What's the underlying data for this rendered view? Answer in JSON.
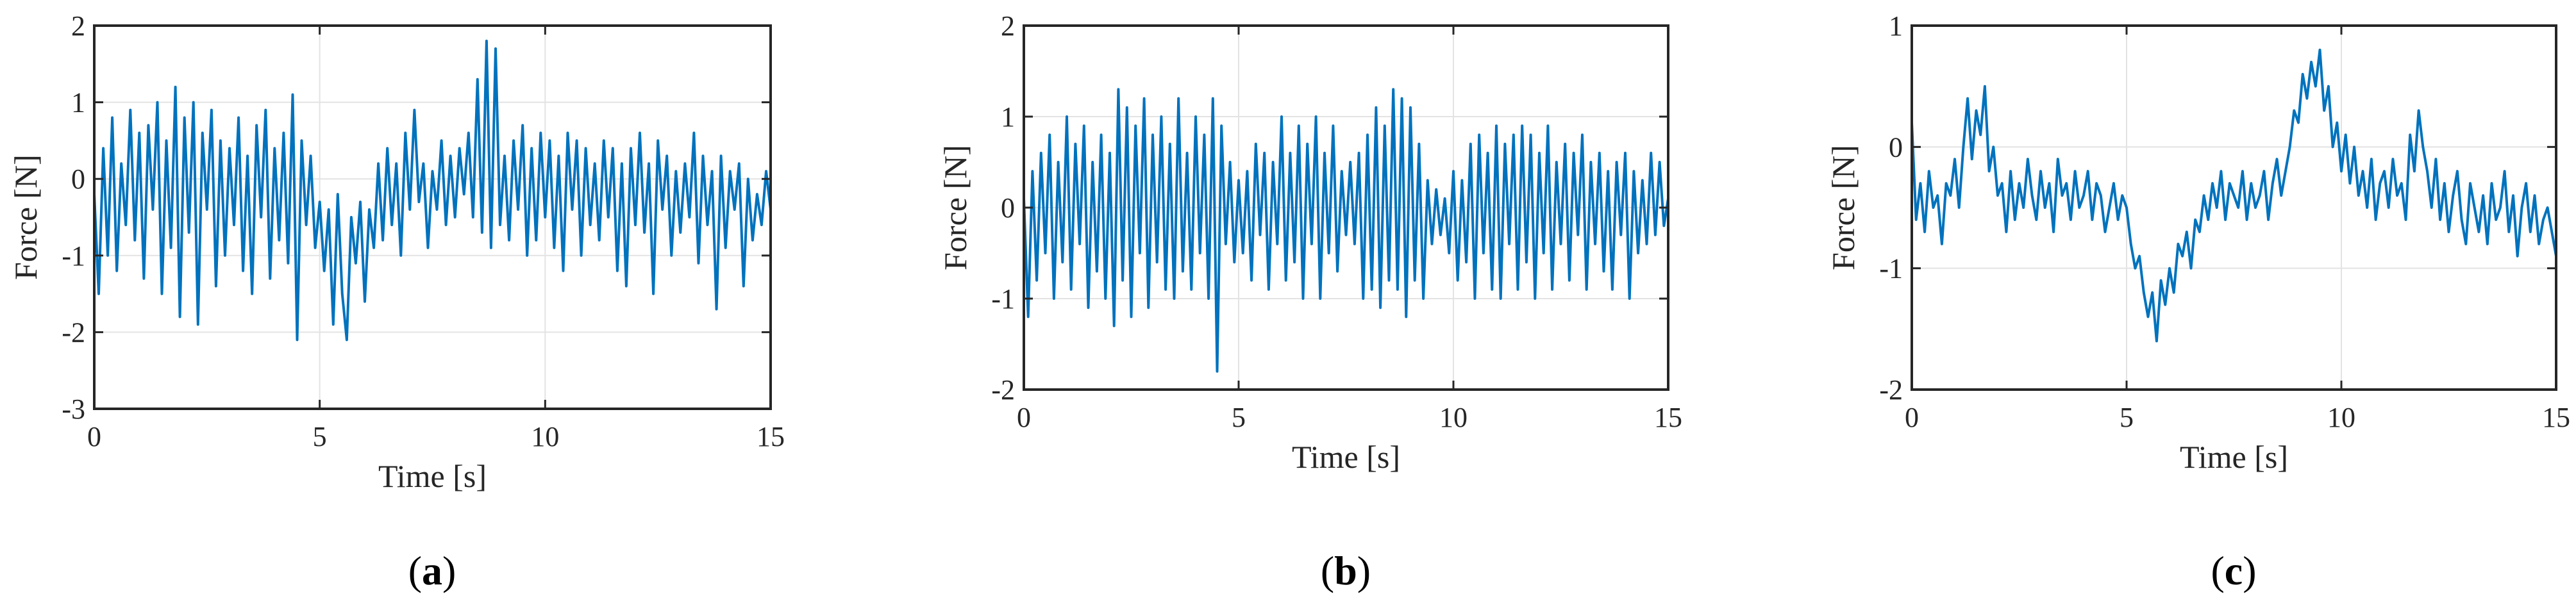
{
  "chart_data": [
    {
      "type": "line",
      "panel_label": "a",
      "xlabel": "Time [s]",
      "ylabel": "Force [N]",
      "xlim": [
        0,
        15
      ],
      "ylim": [
        -3,
        2
      ],
      "xticks": [
        0,
        5,
        10,
        15
      ],
      "yticks": [
        -3,
        -2,
        -1,
        0,
        1,
        2
      ],
      "grid": true,
      "color": "#0072BD",
      "series": [
        {
          "x": [
            0,
            0.1,
            0.2,
            0.3,
            0.4,
            0.5,
            0.6,
            0.7,
            0.8,
            0.9,
            1.0,
            1.1,
            1.2,
            1.3,
            1.4,
            1.5,
            1.6,
            1.7,
            1.8,
            1.9,
            2.0,
            2.1,
            2.2,
            2.3,
            2.4,
            2.5,
            2.6,
            2.7,
            2.8,
            2.9,
            3.0,
            3.1,
            3.2,
            3.3,
            3.4,
            3.5,
            3.6,
            3.7,
            3.8,
            3.9,
            4.0,
            4.1,
            4.2,
            4.3,
            4.4,
            4.5,
            4.6,
            4.7,
            4.8,
            4.9,
            5.0,
            5.1,
            5.2,
            5.3,
            5.4,
            5.5,
            5.6,
            5.7,
            5.8,
            5.9,
            6.0,
            6.1,
            6.2,
            6.3,
            6.4,
            6.5,
            6.6,
            6.7,
            6.8,
            6.9,
            7.0,
            7.1,
            7.2,
            7.3,
            7.4,
            7.5,
            7.6,
            7.7,
            7.8,
            7.9,
            8.0,
            8.1,
            8.2,
            8.3,
            8.4,
            8.5,
            8.6,
            8.7,
            8.8,
            8.9,
            9.0,
            9.1,
            9.2,
            9.3,
            9.4,
            9.5,
            9.6,
            9.7,
            9.8,
            9.9,
            10.0,
            10.1,
            10.2,
            10.3,
            10.4,
            10.5,
            10.6,
            10.7,
            10.8,
            10.9,
            11.0,
            11.1,
            11.2,
            11.3,
            11.4,
            11.5,
            11.6,
            11.7,
            11.8,
            11.9,
            12.0,
            12.1,
            12.2,
            12.3,
            12.4,
            12.5,
            12.6,
            12.7,
            12.8,
            12.9,
            13.0,
            13.1,
            13.2,
            13.3,
            13.4,
            13.5,
            13.6,
            13.7,
            13.8,
            13.9,
            14.0,
            14.1,
            14.2,
            14.3,
            14.4,
            14.5,
            14.6,
            14.7,
            14.8,
            14.9,
            15.0
          ],
          "y": [
            -0.2,
            -1.5,
            0.4,
            -1.0,
            0.8,
            -1.2,
            0.2,
            -0.6,
            0.9,
            -0.8,
            0.6,
            -1.3,
            0.7,
            -0.4,
            1.0,
            -1.5,
            0.5,
            -0.9,
            1.2,
            -1.8,
            0.8,
            -0.7,
            1.0,
            -1.9,
            0.6,
            -0.4,
            0.9,
            -1.4,
            0.5,
            -1.0,
            0.4,
            -0.6,
            0.8,
            -1.2,
            0.3,
            -1.5,
            0.7,
            -0.5,
            0.9,
            -1.3,
            0.4,
            -0.8,
            0.6,
            -1.1,
            1.1,
            -2.1,
            0.5,
            -0.6,
            0.3,
            -0.9,
            -0.3,
            -1.2,
            -0.4,
            -1.9,
            -0.2,
            -1.5,
            -2.1,
            -0.5,
            -1.1,
            -0.3,
            -1.6,
            -0.4,
            -0.9,
            0.2,
            -0.8,
            0.4,
            -0.6,
            0.2,
            -1.0,
            0.6,
            -0.4,
            0.9,
            -0.3,
            0.2,
            -0.9,
            0.1,
            -0.4,
            0.5,
            -0.6,
            0.3,
            -0.5,
            0.4,
            -0.2,
            0.6,
            -0.5,
            1.3,
            -0.7,
            1.8,
            -0.9,
            1.7,
            -0.6,
            0.3,
            -0.8,
            0.5,
            -0.4,
            0.7,
            -1.0,
            0.4,
            -0.8,
            0.6,
            -0.5,
            0.5,
            -0.9,
            0.3,
            -1.2,
            0.6,
            -0.4,
            0.5,
            -1.0,
            0.4,
            -0.6,
            0.2,
            -0.8,
            0.5,
            -0.5,
            0.4,
            -1.2,
            0.2,
            -1.4,
            0.4,
            -0.6,
            0.6,
            -0.7,
            0.2,
            -1.5,
            0.5,
            -0.4,
            0.3,
            -1.0,
            0.1,
            -0.7,
            0.2,
            -0.5,
            0.6,
            -1.1,
            0.3,
            -0.6,
            0.1,
            -1.7,
            0.3,
            -0.9,
            0.1,
            -0.4,
            0.2,
            -1.4,
            0.0,
            -0.8,
            -0.2,
            -0.6,
            0.1,
            -0.4
          ]
        }
      ]
    },
    {
      "type": "line",
      "panel_label": "b",
      "xlabel": "Time [s]",
      "ylabel": "Force [N]",
      "xlim": [
        0,
        15
      ],
      "ylim": [
        -2,
        2
      ],
      "xticks": [
        0,
        5,
        10,
        15
      ],
      "yticks": [
        -2,
        -1,
        0,
        1,
        2
      ],
      "grid": true,
      "color": "#0072BD",
      "series": [
        {
          "x": [
            0,
            0.1,
            0.2,
            0.3,
            0.4,
            0.5,
            0.6,
            0.7,
            0.8,
            0.9,
            1.0,
            1.1,
            1.2,
            1.3,
            1.4,
            1.5,
            1.6,
            1.7,
            1.8,
            1.9,
            2.0,
            2.1,
            2.2,
            2.3,
            2.4,
            2.5,
            2.6,
            2.7,
            2.8,
            2.9,
            3.0,
            3.1,
            3.2,
            3.3,
            3.4,
            3.5,
            3.6,
            3.7,
            3.8,
            3.9,
            4.0,
            4.1,
            4.2,
            4.3,
            4.4,
            4.5,
            4.6,
            4.7,
            4.8,
            4.9,
            5.0,
            5.1,
            5.2,
            5.3,
            5.4,
            5.5,
            5.6,
            5.7,
            5.8,
            5.9,
            6.0,
            6.1,
            6.2,
            6.3,
            6.4,
            6.5,
            6.6,
            6.7,
            6.8,
            6.9,
            7.0,
            7.1,
            7.2,
            7.3,
            7.4,
            7.5,
            7.6,
            7.7,
            7.8,
            7.9,
            8.0,
            8.1,
            8.2,
            8.3,
            8.4,
            8.5,
            8.6,
            8.7,
            8.8,
            8.9,
            9.0,
            9.1,
            9.2,
            9.3,
            9.4,
            9.5,
            9.6,
            9.7,
            9.8,
            9.9,
            10.0,
            10.1,
            10.2,
            10.3,
            10.4,
            10.5,
            10.6,
            10.7,
            10.8,
            10.9,
            11.0,
            11.1,
            11.2,
            11.3,
            11.4,
            11.5,
            11.6,
            11.7,
            11.8,
            11.9,
            12.0,
            12.1,
            12.2,
            12.3,
            12.4,
            12.5,
            12.6,
            12.7,
            12.8,
            12.9,
            13.0,
            13.1,
            13.2,
            13.3,
            13.4,
            13.5,
            13.6,
            13.7,
            13.8,
            13.9,
            14.0,
            14.1,
            14.2,
            14.3,
            14.4,
            14.5,
            14.6,
            14.7,
            14.8,
            14.9,
            15.0
          ],
          "y": [
            0.1,
            -1.2,
            0.4,
            -0.8,
            0.6,
            -0.5,
            0.8,
            -1.0,
            0.5,
            -0.6,
            1.0,
            -0.9,
            0.7,
            -0.4,
            0.9,
            -1.1,
            0.5,
            -0.7,
            0.8,
            -1.0,
            0.6,
            -1.3,
            1.3,
            -0.8,
            1.1,
            -1.2,
            0.9,
            -0.5,
            1.2,
            -1.1,
            0.8,
            -0.6,
            1.0,
            -0.9,
            0.7,
            -1.0,
            1.2,
            -0.7,
            0.6,
            -0.9,
            1.0,
            -0.5,
            0.8,
            -1.0,
            1.2,
            -1.8,
            0.9,
            -0.4,
            0.5,
            -0.6,
            0.3,
            -0.5,
            0.4,
            -0.8,
            0.7,
            -0.3,
            0.6,
            -0.9,
            0.5,
            -0.4,
            1.0,
            -0.8,
            0.6,
            -0.6,
            0.9,
            -1.0,
            0.7,
            -0.4,
            1.0,
            -1.0,
            0.6,
            -0.5,
            0.9,
            -0.7,
            0.4,
            -0.3,
            0.5,
            -0.4,
            0.6,
            -1.0,
            0.8,
            -0.9,
            1.1,
            -1.1,
            0.9,
            -0.8,
            1.3,
            -0.9,
            1.2,
            -1.2,
            1.1,
            -0.8,
            0.7,
            -1.0,
            0.3,
            -0.4,
            0.2,
            -0.3,
            0.1,
            -0.5,
            0.4,
            -0.8,
            0.3,
            -0.6,
            0.7,
            -1.0,
            0.8,
            -0.5,
            0.6,
            -0.9,
            0.9,
            -1.0,
            0.7,
            -0.4,
            0.8,
            -0.9,
            0.9,
            -0.6,
            0.8,
            -1.0,
            0.6,
            -0.5,
            0.9,
            -0.9,
            0.5,
            -0.4,
            0.7,
            -0.8,
            0.6,
            -0.3,
            0.8,
            -0.9,
            0.5,
            -0.4,
            0.6,
            -0.7,
            0.4,
            -0.9,
            0.5,
            -0.3,
            0.6,
            -1.0,
            0.4,
            -0.5,
            0.3,
            -0.4,
            0.6,
            -0.3,
            0.5,
            -0.2,
            0.1
          ]
        }
      ]
    },
    {
      "type": "line",
      "panel_label": "c",
      "xlabel": "Time [s]",
      "ylabel": "Force [N]",
      "xlim": [
        0,
        15
      ],
      "ylim": [
        -2,
        1
      ],
      "xticks": [
        0,
        5,
        10,
        15
      ],
      "yticks": [
        -2,
        -1,
        0,
        1
      ],
      "grid": true,
      "color": "#0072BD",
      "series": [
        {
          "x": [
            0,
            0.1,
            0.2,
            0.3,
            0.4,
            0.5,
            0.6,
            0.7,
            0.8,
            0.9,
            1.0,
            1.1,
            1.2,
            1.3,
            1.4,
            1.5,
            1.6,
            1.7,
            1.8,
            1.9,
            2.0,
            2.1,
            2.2,
            2.3,
            2.4,
            2.5,
            2.6,
            2.7,
            2.8,
            2.9,
            3.0,
            3.1,
            3.2,
            3.3,
            3.4,
            3.5,
            3.6,
            3.7,
            3.8,
            3.9,
            4.0,
            4.1,
            4.2,
            4.3,
            4.4,
            4.5,
            4.6,
            4.7,
            4.8,
            4.9,
            5.0,
            5.1,
            5.2,
            5.3,
            5.4,
            5.5,
            5.6,
            5.7,
            5.8,
            5.9,
            6.0,
            6.1,
            6.2,
            6.3,
            6.4,
            6.5,
            6.6,
            6.7,
            6.8,
            6.9,
            7.0,
            7.1,
            7.2,
            7.3,
            7.4,
            7.5,
            7.6,
            7.7,
            7.8,
            7.9,
            8.0,
            8.1,
            8.2,
            8.3,
            8.4,
            8.5,
            8.6,
            8.7,
            8.8,
            8.9,
            9.0,
            9.1,
            9.2,
            9.3,
            9.4,
            9.5,
            9.6,
            9.7,
            9.8,
            9.9,
            10.0,
            10.1,
            10.2,
            10.3,
            10.4,
            10.5,
            10.6,
            10.7,
            10.8,
            10.9,
            11.0,
            11.1,
            11.2,
            11.3,
            11.4,
            11.5,
            11.6,
            11.7,
            11.8,
            11.9,
            12.0,
            12.1,
            12.2,
            12.3,
            12.4,
            12.5,
            12.6,
            12.7,
            12.8,
            12.9,
            13.0,
            13.1,
            13.2,
            13.3,
            13.4,
            13.5,
            13.6,
            13.7,
            13.8,
            13.9,
            14.0,
            14.1,
            14.2,
            14.3,
            14.4,
            14.5,
            14.6,
            14.7,
            14.8,
            14.9,
            15.0
          ],
          "y": [
            0.2,
            -0.6,
            -0.3,
            -0.7,
            -0.2,
            -0.5,
            -0.4,
            -0.8,
            -0.3,
            -0.4,
            -0.1,
            -0.5,
            0.0,
            0.4,
            -0.1,
            0.3,
            0.1,
            0.5,
            -0.2,
            0.0,
            -0.4,
            -0.3,
            -0.7,
            -0.2,
            -0.6,
            -0.3,
            -0.5,
            -0.1,
            -0.4,
            -0.6,
            -0.2,
            -0.5,
            -0.3,
            -0.7,
            -0.1,
            -0.4,
            -0.3,
            -0.6,
            -0.2,
            -0.5,
            -0.4,
            -0.2,
            -0.6,
            -0.3,
            -0.4,
            -0.7,
            -0.5,
            -0.3,
            -0.6,
            -0.4,
            -0.5,
            -0.8,
            -1.0,
            -0.9,
            -1.2,
            -1.4,
            -1.2,
            -1.6,
            -1.1,
            -1.3,
            -1.0,
            -1.2,
            -0.8,
            -0.9,
            -0.7,
            -1.0,
            -0.6,
            -0.7,
            -0.4,
            -0.6,
            -0.3,
            -0.5,
            -0.2,
            -0.6,
            -0.3,
            -0.4,
            -0.5,
            -0.2,
            -0.6,
            -0.3,
            -0.5,
            -0.4,
            -0.2,
            -0.6,
            -0.3,
            -0.1,
            -0.4,
            -0.2,
            0.0,
            0.3,
            0.2,
            0.6,
            0.4,
            0.7,
            0.5,
            0.8,
            0.3,
            0.5,
            0.0,
            0.2,
            -0.2,
            0.1,
            -0.3,
            0.0,
            -0.4,
            -0.2,
            -0.5,
            -0.1,
            -0.6,
            -0.3,
            -0.2,
            -0.5,
            -0.1,
            -0.4,
            -0.3,
            -0.6,
            0.1,
            -0.2,
            0.3,
            0.0,
            -0.2,
            -0.5,
            -0.1,
            -0.6,
            -0.3,
            -0.7,
            -0.4,
            -0.2,
            -0.6,
            -0.8,
            -0.3,
            -0.5,
            -0.7,
            -0.4,
            -0.8,
            -0.3,
            -0.6,
            -0.5,
            -0.2,
            -0.7,
            -0.4,
            -0.9,
            -0.5,
            -0.3,
            -0.7,
            -0.4,
            -0.8,
            -0.6,
            -0.5,
            -0.7,
            -0.9
          ]
        }
      ]
    }
  ]
}
